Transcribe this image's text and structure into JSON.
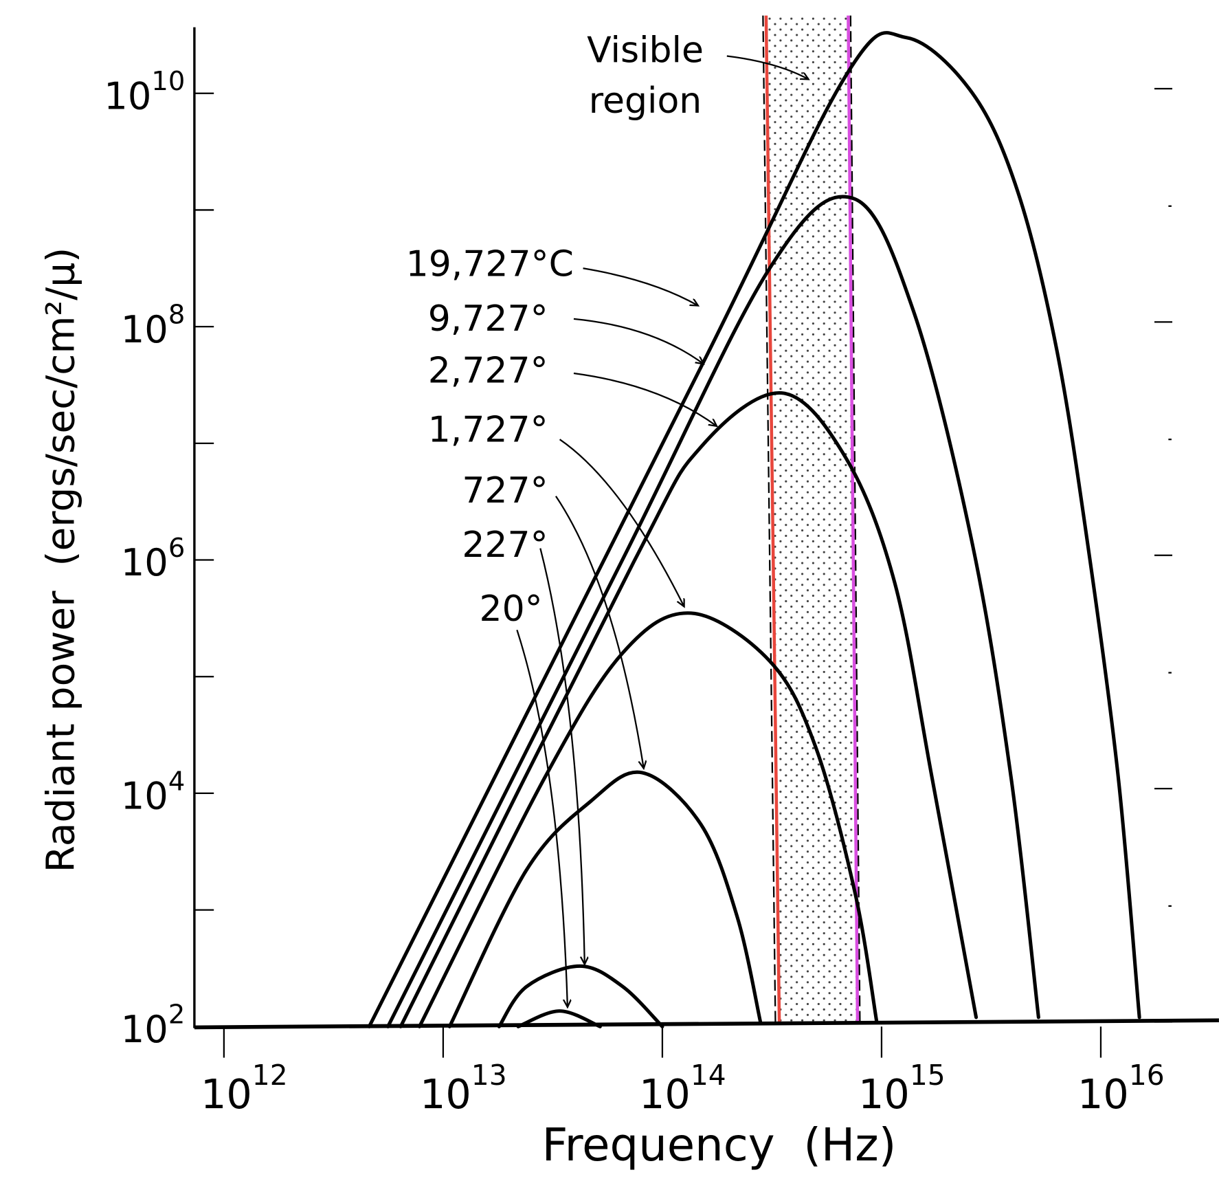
{
  "chart_data": {
    "type": "line",
    "xlabel": "Frequency  (Hz)",
    "ylabel": "Radiant power  (ergs/sec/cm²/μ)",
    "x_scale": "log",
    "y_scale": "log",
    "xlim": [
      500000000000.0,
      3e+16
    ],
    "ylim": [
      100.0,
      40000000000.0
    ],
    "x_ticks": [
      {
        "value": 1000000000000.0,
        "base": "10",
        "exp": "12"
      },
      {
        "value": 10000000000000.0,
        "base": "10",
        "exp": "13"
      },
      {
        "value": 100000000000000.0,
        "base": "10",
        "exp": "14"
      },
      {
        "value": 1000000000000000.0,
        "base": "10",
        "exp": "15"
      },
      {
        "value": 1e+16,
        "base": "10",
        "exp": "16"
      }
    ],
    "y_ticks": [
      {
        "value": 100.0,
        "base": "10",
        "exp": "2"
      },
      {
        "value": 10000.0,
        "base": "10",
        "exp": "4"
      },
      {
        "value": 1000000.0,
        "base": "10",
        "exp": "6"
      },
      {
        "value": 100000000.0,
        "base": "10",
        "exp": "8"
      },
      {
        "value": 10000000000.0,
        "base": "10",
        "exp": "10"
      }
    ],
    "y_minor_ticks": [
      1000.0,
      100000.0,
      10000000.0,
      1000000000.0
    ],
    "grid": false,
    "series": [
      {
        "name": "19,727°C",
        "points": [
          [
            4600000000000.0,
            100.0
          ],
          [
            150000000000000.0,
            45000000.0
          ],
          [
            700000000000000.0,
            15000000000.0
          ],
          [
            1300000000000000.0,
            30000000000.0
          ],
          [
            2600000000000000.0,
            10000000000.0
          ],
          [
            4200000000000000.0,
            1400000000.0
          ],
          [
            6300000000000000.0,
            63000000.0
          ],
          [
            8700000000000000.0,
            1400000.0
          ],
          [
            1.2e+16,
            14000.0
          ],
          [
            1.5e+16,
            120.0
          ]
        ]
      },
      {
        "name": "9,727°",
        "points": [
          [
            5600000000000.0,
            100.0
          ],
          [
            65000000000000.0,
            960000.0
          ],
          [
            310000000000000.0,
            320000000.0
          ],
          [
            740000000000000.0,
            1260000000.0
          ],
          [
            1400000000000000.0,
            135000000.0
          ],
          [
            2600000000000000.0,
            1350000.0
          ],
          [
            3900000000000000.0,
            13500.0
          ],
          [
            5200000000000000.0,
            120.0
          ]
        ]
      },
      {
        "name": "2,727°",
        "points": [
          [
            6400000000000.0,
            100.0
          ],
          [
            74000000000000.0,
            960000.0
          ],
          [
            150000000000000.0,
            9300000.0
          ],
          [
            350000000000000.0,
            27000000.0
          ],
          [
            690000000000000.0,
            7400000.0
          ],
          [
            1150000000000000.0,
            630000.0
          ],
          [
            1700000000000000.0,
            13500.0
          ],
          [
            2700000000000000.0,
            120.0
          ]
        ]
      },
      {
        "name": "1,727°",
        "points": [
          [
            7800000000000.0,
            100.0
          ],
          [
            29000000000000.0,
            13500.0
          ],
          [
            66000000000000.0,
            160000.0
          ],
          [
            135000000000000.0,
            350000.0
          ],
          [
            310000000000000.0,
            135000.0
          ],
          [
            500000000000000.0,
            25000.0
          ],
          [
            760000000000000.0,
            1350.0
          ],
          [
            950000000000000.0,
            110.0
          ]
        ]
      },
      {
        "name": "727°",
        "points": [
          [
            10700000000000.0,
            100.0
          ],
          [
            24000000000000.0,
            2200.0
          ],
          [
            47000000000000.0,
            8500.0
          ],
          [
            81000000000000.0,
            15000.0
          ],
          [
            150000000000000.0,
            5400.0
          ],
          [
            220000000000000.0,
            860.0
          ],
          [
            280000000000000.0,
            110.0
          ]
        ]
      },
      {
        "name": "227°",
        "points": [
          [
            18000000000000.0,
            100.0
          ],
          [
            24000000000000.0,
            220.0
          ],
          [
            42000000000000.0,
            330.0
          ],
          [
            66000000000000.0,
            220.0
          ],
          [
            100000000000000.0,
            100.0
          ]
        ]
      },
      {
        "name": "20°",
        "points": [
          [
            22000000000000.0,
            100.0
          ],
          [
            34000000000000.0,
            136.0
          ],
          [
            52000000000000.0,
            100.0
          ]
        ]
      }
    ],
    "annotations": {
      "visible_region": {
        "line1": "Visible",
        "line2": "region",
        "range_hz": [
          320000000000000.0,
          740000000000000.0
        ],
        "fill": "stippled"
      }
    },
    "colors": {
      "curve": "#000000",
      "visible_low_edge": "#e8463c",
      "visible_high_edge": "#d84ee0"
    }
  }
}
